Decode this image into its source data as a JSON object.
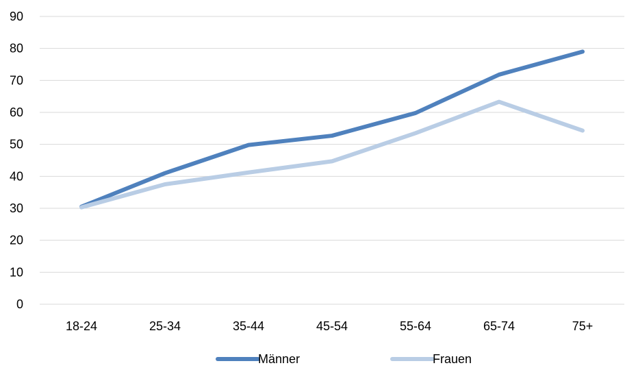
{
  "colors": {
    "grid": "#d9d9d9",
    "text": "#000000"
  },
  "chart_data": {
    "type": "line",
    "title": "",
    "xlabel": "",
    "ylabel": "",
    "categories": [
      "18-24",
      "25-34",
      "35-44",
      "45-54",
      "55-64",
      "65-74",
      "75+"
    ],
    "ylim": [
      0,
      90
    ],
    "yticks": [
      0,
      10,
      20,
      30,
      40,
      50,
      60,
      70,
      80,
      90
    ],
    "grid": true,
    "legend_position": "bottom",
    "series": [
      {
        "name": "Männer",
        "color": "#4f81bd",
        "values": [
          30.5,
          41,
          49.8,
          52.7,
          59.8,
          71.8,
          79
        ]
      },
      {
        "name": "Frauen",
        "color": "#b9cde5",
        "values": [
          30.3,
          37.5,
          41.2,
          44.7,
          53.5,
          63.3,
          54.3
        ]
      }
    ]
  }
}
